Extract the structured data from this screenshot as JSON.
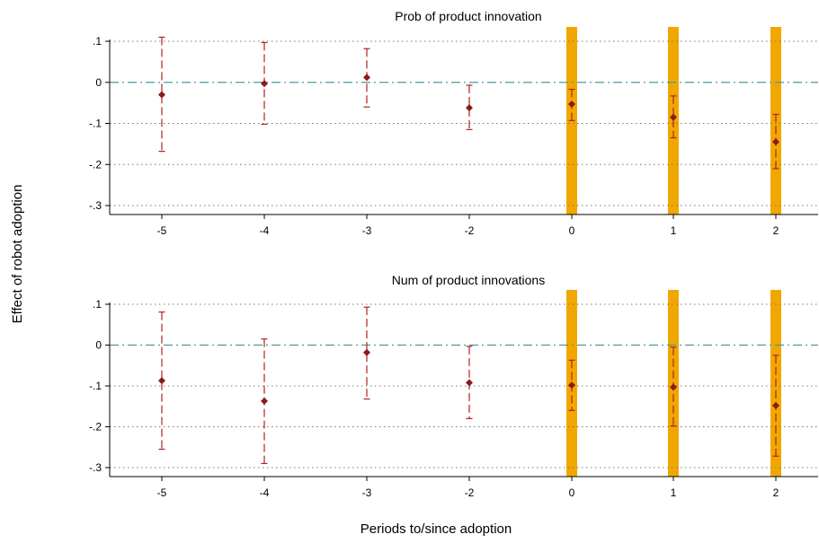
{
  "figure": {
    "ylabel": "Effect of robot adoption",
    "xlabel": "Periods to/since adoption"
  },
  "colors": {
    "point": "#8b1a1a",
    "ci": "#b22222",
    "zero_line": "#4a9aa0",
    "highlight": "#f0a800",
    "grid": "#777777",
    "axis": "#000000"
  },
  "chart_data": [
    {
      "type": "scatter",
      "title": "Prob of product innovation",
      "x": [
        -5,
        -4,
        -3,
        -2,
        0,
        1,
        2
      ],
      "x_tick_labels": [
        "-5",
        "-4",
        "-3",
        "-2",
        "0",
        "1",
        "2"
      ],
      "estimates": [
        -0.03,
        -0.003,
        0.012,
        -0.062,
        -0.053,
        -0.085,
        -0.145
      ],
      "ci_low": [
        -0.168,
        -0.102,
        -0.06,
        -0.115,
        -0.093,
        -0.135,
        -0.21
      ],
      "ci_high": [
        0.11,
        0.097,
        0.082,
        -0.007,
        -0.017,
        -0.033,
        -0.078
      ],
      "highlighted_x": [
        0,
        1,
        2
      ],
      "ylim": [
        -0.3,
        0.1
      ],
      "y_ticks": [
        0.1,
        0,
        -0.1,
        -0.2,
        -0.3
      ],
      "y_tick_labels": [
        ".1",
        "0",
        "-.1",
        "-.2",
        "-.3"
      ],
      "reference_line_y": 0,
      "grid": true
    },
    {
      "type": "scatter",
      "title": "Num of product innovations",
      "x": [
        -5,
        -4,
        -3,
        -2,
        0,
        1,
        2
      ],
      "x_tick_labels": [
        "-5",
        "-4",
        "-3",
        "-2",
        "0",
        "1",
        "2"
      ],
      "estimates": [
        -0.087,
        -0.137,
        -0.018,
        -0.092,
        -0.098,
        -0.103,
        -0.148
      ],
      "ci_low": [
        -0.255,
        -0.29,
        -0.132,
        -0.18,
        -0.16,
        -0.198,
        -0.272
      ],
      "ci_high": [
        0.081,
        0.015,
        0.093,
        -0.003,
        -0.037,
        -0.005,
        -0.025
      ],
      "highlighted_x": [
        0,
        1,
        2
      ],
      "ylim": [
        -0.3,
        0.1
      ],
      "y_ticks": [
        0.1,
        0,
        -0.1,
        -0.2,
        -0.3
      ],
      "y_tick_labels": [
        ".1",
        "0",
        "-.1",
        "-.2",
        "-.3"
      ],
      "reference_line_y": 0,
      "grid": true
    }
  ]
}
